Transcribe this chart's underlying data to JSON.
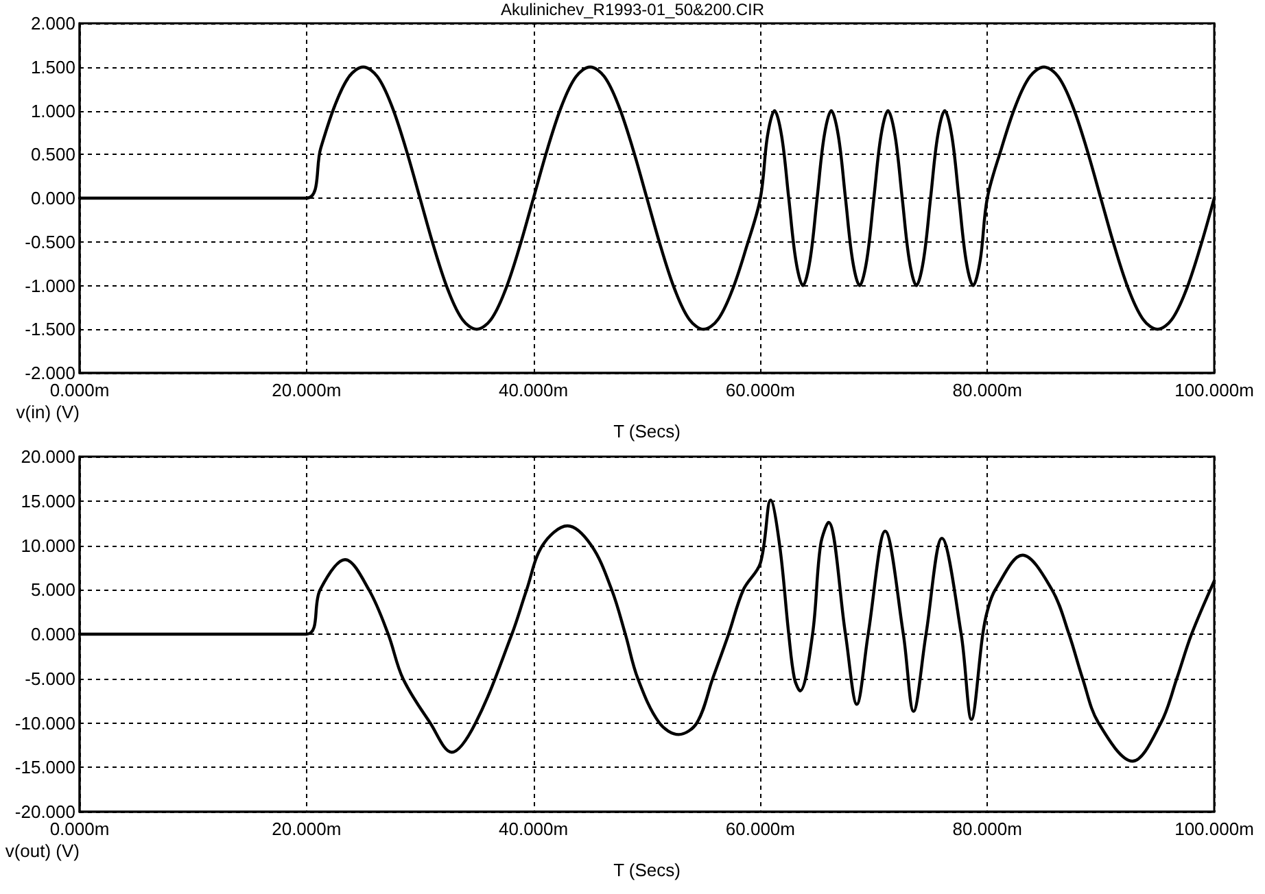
{
  "chart_data": [
    {
      "type": "line",
      "title": "Akulinichev_R1993-01_50&200.CIR",
      "xlabel": "T (Secs)",
      "ylabel": "v(in) (V)",
      "xlim": [
        0,
        100
      ],
      "ylim": [
        -2,
        2
      ],
      "xticks": [
        {
          "value": 0,
          "label": "0.000m"
        },
        {
          "value": 20,
          "label": "20.000m"
        },
        {
          "value": 40,
          "label": "40.000m"
        },
        {
          "value": 60,
          "label": "60.000m"
        },
        {
          "value": 80,
          "label": "80.000m"
        },
        {
          "value": 100,
          "label": "100.000m"
        }
      ],
      "yticks": [
        {
          "value": -2,
          "label": "-2.000"
        },
        {
          "value": -1.5,
          "label": "-1.500"
        },
        {
          "value": -1,
          "label": "-1.000"
        },
        {
          "value": -0.5,
          "label": "-0.500"
        },
        {
          "value": 0,
          "label": "0.000"
        },
        {
          "value": 0.5,
          "label": "0.500"
        },
        {
          "value": 1,
          "label": "1.000"
        },
        {
          "value": 1.5,
          "label": "1.500"
        },
        {
          "value": 2,
          "label": "2.000"
        }
      ],
      "grid": true,
      "marker": "none",
      "line_style": "solid",
      "series": [
        {
          "color": "#000000",
          "x": [
            0,
            20,
            21.25,
            22.5,
            23.75,
            25,
            26.25,
            27.5,
            28.75,
            30,
            31.25,
            32.5,
            33.75,
            35,
            36.25,
            37.5,
            38.75,
            40,
            41.25,
            42.5,
            43.75,
            45,
            46.25,
            47.5,
            48.75,
            50,
            51.25,
            52.5,
            53.75,
            55,
            56.25,
            57.5,
            58.75,
            60,
            60.625,
            61.25,
            61.875,
            62.5,
            63.125,
            63.75,
            64.375,
            65,
            65.625,
            66.25,
            66.875,
            67.5,
            68.125,
            68.75,
            69.375,
            70,
            70.625,
            71.25,
            71.875,
            72.5,
            73.125,
            73.75,
            74.375,
            75,
            75.625,
            76.25,
            76.875,
            77.5,
            78.125,
            78.75,
            79.375,
            80,
            81.25,
            82.5,
            83.75,
            85,
            86.25,
            87.5,
            88.75,
            90,
            91.25,
            92.5,
            93.75,
            95,
            96.25,
            97.5,
            98.75,
            100
          ],
          "values": [
            0,
            0,
            0.57,
            1.06,
            1.39,
            1.5,
            1.39,
            1.06,
            0.57,
            0,
            -0.57,
            -1.06,
            -1.39,
            -1.5,
            -1.39,
            -1.06,
            -0.57,
            0,
            0.57,
            1.06,
            1.39,
            1.5,
            1.39,
            1.06,
            0.57,
            0,
            -0.57,
            -1.06,
            -1.39,
            -1.5,
            -1.39,
            -1.06,
            -0.57,
            0,
            0.71,
            1,
            0.71,
            0,
            -0.71,
            -1,
            -0.71,
            0,
            0.71,
            1,
            0.71,
            0,
            -0.71,
            -1,
            -0.71,
            0,
            0.71,
            1,
            0.71,
            0,
            -0.71,
            -1,
            -0.71,
            0,
            0.71,
            1,
            0.71,
            0,
            -0.71,
            -1,
            -0.71,
            0,
            0.57,
            1.06,
            1.39,
            1.5,
            1.39,
            1.06,
            0.57,
            0,
            -0.57,
            -1.06,
            -1.39,
            -1.5,
            -1.39,
            -1.06,
            -0.57,
            0
          ]
        }
      ]
    },
    {
      "type": "line",
      "xlabel": "T (Secs)",
      "ylabel": "v(out) (V)",
      "xlim": [
        0,
        100
      ],
      "ylim": [
        -20,
        20
      ],
      "xticks": [
        {
          "value": 0,
          "label": "0.000m"
        },
        {
          "value": 20,
          "label": "20.000m"
        },
        {
          "value": 40,
          "label": "40.000m"
        },
        {
          "value": 60,
          "label": "60.000m"
        },
        {
          "value": 80,
          "label": "80.000m"
        },
        {
          "value": 100,
          "label": "100.000m"
        }
      ],
      "yticks": [
        {
          "value": -20,
          "label": "-20.000"
        },
        {
          "value": -15,
          "label": "-15.000"
        },
        {
          "value": -10,
          "label": "-10.000"
        },
        {
          "value": -5,
          "label": "-5.000"
        },
        {
          "value": 0,
          "label": "0.000"
        },
        {
          "value": 5,
          "label": "5.000"
        },
        {
          "value": 10,
          "label": "10.000"
        },
        {
          "value": 15,
          "label": "15.000"
        },
        {
          "value": 20,
          "label": "20.000"
        }
      ],
      "grid": true,
      "marker": "none",
      "line_style": "solid",
      "series": [
        {
          "color": "#000000",
          "x": [
            0,
            20,
            21.2,
            23.4,
            25.5,
            27.2,
            28.5,
            30.9,
            32.8,
            34.9,
            38.1,
            39.4,
            40.8,
            43,
            45.1,
            46.9,
            48.1,
            49.2,
            51.1,
            52.8,
            54.4,
            55.8,
            57.2,
            58.5,
            60,
            60.9,
            61.7,
            62.5,
            63,
            63.5,
            64.6,
            65.3,
            66,
            67.5,
            68.5,
            69.5,
            71,
            72.6,
            73.5,
            74.6,
            76,
            77.7,
            78.6,
            79.6,
            80,
            80.7,
            83.1,
            85.7,
            87.2,
            88.4,
            89.8,
            92.8,
            95.3,
            96.7,
            98,
            100
          ],
          "values": [
            0,
            0,
            5,
            8.4,
            5,
            0,
            -5,
            -10,
            -13.3,
            -10,
            0,
            5,
            10,
            12.2,
            10,
            5,
            0,
            -5,
            -10,
            -11.3,
            -10,
            -5,
            0,
            5,
            8,
            15.1,
            10,
            0,
            -5,
            -6.4,
            0,
            10,
            12.6,
            0,
            -7.9,
            0,
            11.6,
            0,
            -8.7,
            0,
            10.8,
            0,
            -9.6,
            0,
            2.6,
            5,
            8.9,
            5,
            0,
            -5,
            -10,
            -14.3,
            -10,
            -5,
            0,
            6
          ]
        }
      ]
    }
  ]
}
